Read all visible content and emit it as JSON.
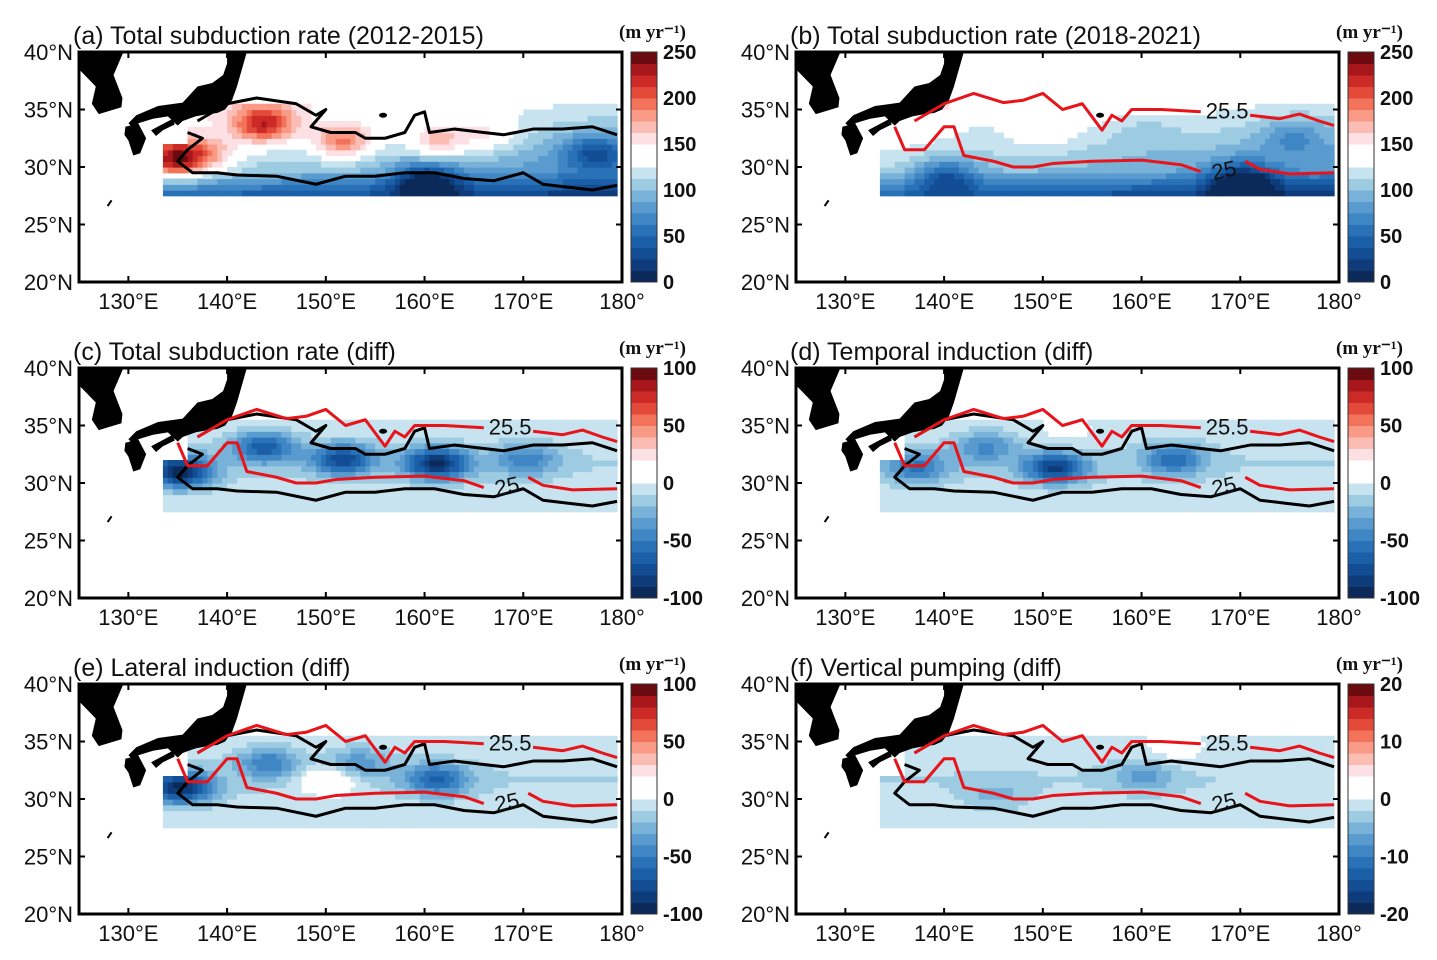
{
  "chart_data": [
    {
      "type": "heatmap",
      "panel": "a",
      "title": "(a) Total subduction rate (2012-2015)",
      "xlabel": "",
      "ylabel": "",
      "xlim": [
        125,
        180
      ],
      "ylim": [
        20,
        40
      ],
      "xticks": [
        "130°E",
        "140°E",
        "150°E",
        "160°E",
        "170°E",
        "180°"
      ],
      "yticks": [
        "20°N",
        "25°N",
        "30°N",
        "35°N",
        "40°N"
      ],
      "colorbar": {
        "unit": "(m yr⁻¹)",
        "range": [
          0,
          250
        ],
        "ticks": [
          "0",
          "50",
          "100",
          "150",
          "200",
          "250"
        ],
        "center": 125
      },
      "field_range_lat": [
        27.5,
        35.5
      ],
      "field_range_lon": [
        133.5,
        179.5
      ],
      "features": [
        {
          "lon": 143.5,
          "lat": 33.5,
          "value": 225
        },
        {
          "lon": 151.5,
          "lat": 32,
          "value": 205
        },
        {
          "lon": 161,
          "lat": 32,
          "value": 185
        },
        {
          "lon": 166,
          "lat": 32.5,
          "value": 165
        },
        {
          "lon": 138,
          "lat": 31,
          "value": 170
        },
        {
          "lon": 134.5,
          "lat": 30.5,
          "value": 250
        },
        {
          "lon": 160,
          "lat": 28.5,
          "value": 30
        },
        {
          "lon": 177,
          "lat": 31,
          "value": 60
        }
      ],
      "contours": [
        {
          "label": "",
          "color": "black"
        },
        {
          "label": "",
          "color": "black"
        }
      ]
    },
    {
      "type": "heatmap",
      "panel": "b",
      "title": "(b) Total subduction rate (2018-2021)",
      "xlim": [
        125,
        180
      ],
      "ylim": [
        20,
        40
      ],
      "xticks": [
        "130°E",
        "140°E",
        "150°E",
        "160°E",
        "170°E",
        "180°"
      ],
      "yticks": [
        "20°N",
        "25°N",
        "30°N",
        "35°N",
        "40°N"
      ],
      "colorbar": {
        "unit": "(m yr⁻¹)",
        "range": [
          0,
          250
        ],
        "ticks": [
          "0",
          "50",
          "100",
          "150",
          "200",
          "250"
        ],
        "center": 125
      },
      "field_range_lat": [
        27.5,
        35.5
      ],
      "field_range_lon": [
        133.5,
        179.5
      ],
      "features": [
        {
          "lon": 150,
          "lat": 32.5,
          "value": 140
        },
        {
          "lon": 143,
          "lat": 33,
          "value": 115
        },
        {
          "lon": 160,
          "lat": 33,
          "value": 110
        },
        {
          "lon": 170,
          "lat": 28.5,
          "value": 25
        },
        {
          "lon": 140,
          "lat": 29,
          "value": 60
        },
        {
          "lon": 175,
          "lat": 32.5,
          "value": 90
        }
      ],
      "contours": [
        {
          "label": "25.5",
          "color": "red"
        },
        {
          "label": "25",
          "color": "red"
        }
      ]
    },
    {
      "type": "heatmap",
      "panel": "c",
      "title": "(c) Total subduction rate (diff)",
      "xlim": [
        125,
        180
      ],
      "ylim": [
        20,
        40
      ],
      "xticks": [
        "130°E",
        "140°E",
        "150°E",
        "160°E",
        "170°E",
        "180°"
      ],
      "yticks": [
        "20°N",
        "25°N",
        "30°N",
        "35°N",
        "40°N"
      ],
      "colorbar": {
        "unit": "(m yr⁻¹)",
        "range": [
          -100,
          100
        ],
        "ticks": [
          "-100",
          "-50",
          "0",
          "50",
          "100"
        ],
        "center": 0
      },
      "features": [
        {
          "lon": 143.5,
          "lat": 33.5,
          "value": -95
        },
        {
          "lon": 161,
          "lat": 31.5,
          "value": -85
        },
        {
          "lon": 151.5,
          "lat": 32,
          "value": -70
        },
        {
          "lon": 135,
          "lat": 30.5,
          "value": -100
        },
        {
          "lon": 170,
          "lat": 32,
          "value": -40
        }
      ],
      "contours": [
        {
          "label": "25.5",
          "color": "red"
        },
        {
          "label": "25",
          "color": "red"
        },
        {
          "label": "",
          "color": "black"
        }
      ]
    },
    {
      "type": "heatmap",
      "panel": "d",
      "title": "(d) Temporal induction (diff)",
      "xlim": [
        125,
        180
      ],
      "ylim": [
        20,
        40
      ],
      "xticks": [
        "130°E",
        "140°E",
        "150°E",
        "160°E",
        "170°E",
        "180°"
      ],
      "yticks": [
        "20°N",
        "25°N",
        "30°N",
        "35°N",
        "40°N"
      ],
      "colorbar": {
        "unit": "(m yr⁻¹)",
        "range": [
          -100,
          100
        ],
        "ticks": [
          "-100",
          "-50",
          "0",
          "50",
          "100"
        ],
        "center": 0
      },
      "features": [
        {
          "lon": 151,
          "lat": 31,
          "value": -75
        },
        {
          "lon": 144,
          "lat": 33.5,
          "value": -55
        },
        {
          "lon": 163,
          "lat": 32,
          "value": -50
        },
        {
          "lon": 137,
          "lat": 31,
          "value": -45
        },
        {
          "lon": 152,
          "lat": 34.5,
          "value": 20
        }
      ],
      "contours": [
        {
          "label": "25.5",
          "color": "red"
        },
        {
          "label": "25",
          "color": "red"
        },
        {
          "label": "",
          "color": "black"
        }
      ]
    },
    {
      "type": "heatmap",
      "panel": "e",
      "title": "(e) Lateral induction (diff)",
      "xlim": [
        125,
        180
      ],
      "ylim": [
        20,
        40
      ],
      "xticks": [
        "130°E",
        "140°E",
        "150°E",
        "160°E",
        "170°E",
        "180°"
      ],
      "yticks": [
        "20°N",
        "25°N",
        "30°N",
        "35°N",
        "40°N"
      ],
      "colorbar": {
        "unit": "(m yr⁻¹)",
        "range": [
          -100,
          100
        ],
        "ticks": [
          "-100",
          "-50",
          "0",
          "50",
          "100"
        ],
        "center": 0
      },
      "features": [
        {
          "lon": 144,
          "lat": 33.5,
          "value": -65
        },
        {
          "lon": 135,
          "lat": 30.5,
          "value": -95
        },
        {
          "lon": 161,
          "lat": 31.5,
          "value": -55
        },
        {
          "lon": 153,
          "lat": 33.5,
          "value": -50
        },
        {
          "lon": 150,
          "lat": 31.5,
          "value": 30
        }
      ],
      "contours": [
        {
          "label": "25.5",
          "color": "red"
        },
        {
          "label": "25",
          "color": "red"
        },
        {
          "label": "",
          "color": "black"
        }
      ]
    },
    {
      "type": "heatmap",
      "panel": "f",
      "title": "(f) Vertical pumping (diff)",
      "xlim": [
        125,
        180
      ],
      "ylim": [
        20,
        40
      ],
      "xticks": [
        "130°E",
        "140°E",
        "150°E",
        "160°E",
        "170°E",
        "180°"
      ],
      "yticks": [
        "20°N",
        "25°N",
        "30°N",
        "35°N",
        "40°N"
      ],
      "colorbar": {
        "unit": "(m yr⁻¹)",
        "range": [
          -20,
          20
        ],
        "ticks": [
          "-20",
          "-10",
          "0",
          "10",
          "20"
        ],
        "center": 0
      },
      "features": [
        {
          "lon": 160,
          "lat": 32,
          "value": -5
        },
        {
          "lon": 145,
          "lat": 29.5,
          "value": -5
        },
        {
          "lon": 163,
          "lat": 34.5,
          "value": 5
        }
      ],
      "contours": [
        {
          "label": "25.5",
          "color": "red"
        },
        {
          "label": "25",
          "color": "red"
        },
        {
          "label": "",
          "color": "black"
        }
      ]
    }
  ]
}
